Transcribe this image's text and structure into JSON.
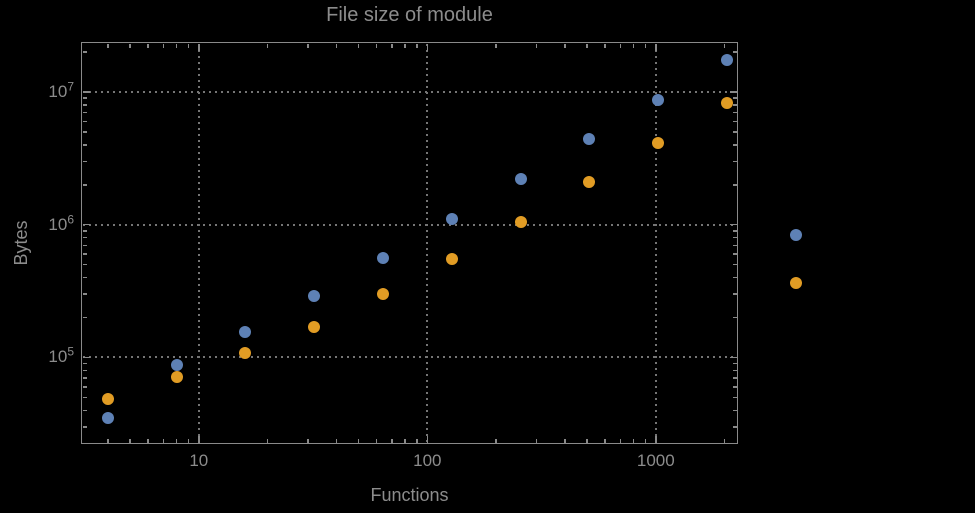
{
  "title": "File size of module",
  "colors": {
    "background": "#000000",
    "frame": "#8a8a8a",
    "grid": "#757575",
    "text": "#8c8c8c",
    "series_blue": "#5e81b5",
    "series_orange": "#e19c24"
  },
  "chart_data": {
    "type": "scatter",
    "title": "File size of module",
    "xlabel": "Functions",
    "ylabel": "Bytes",
    "x_scale": "log",
    "y_scale": "log",
    "grid": "dotted",
    "legend": "none",
    "x_range": [
      3.05,
      2290
    ],
    "y_range": [
      22300,
      23800000
    ],
    "x": [
      4,
      8,
      16,
      32,
      64,
      128,
      256,
      512,
      1024,
      2048,
      4096
    ],
    "series": [
      {
        "name": "blue",
        "color": "#5e81b5",
        "values": [
          35000,
          88000,
          155000,
          290000,
          560000,
          1100000,
          2200000,
          4400000,
          8700000,
          17500000,
          840000
        ]
      },
      {
        "name": "orange",
        "color": "#e19c24",
        "values": [
          49000,
          71000,
          108000,
          170000,
          300000,
          550000,
          1050000,
          2100000,
          4100000,
          8300000,
          365000
        ]
      }
    ],
    "x_ticks": [
      {
        "value": 10,
        "label": "10"
      },
      {
        "value": 100,
        "label": "100"
      },
      {
        "value": 1000,
        "label": "1000"
      }
    ],
    "y_ticks": [
      {
        "value": 100000,
        "base": "10",
        "exp": "5"
      },
      {
        "value": 1000000,
        "base": "10",
        "exp": "6"
      },
      {
        "value": 10000000,
        "base": "10",
        "exp": "7"
      }
    ],
    "note_points_outside_frame": "last x value (4096) plotted right of the frame edge"
  }
}
